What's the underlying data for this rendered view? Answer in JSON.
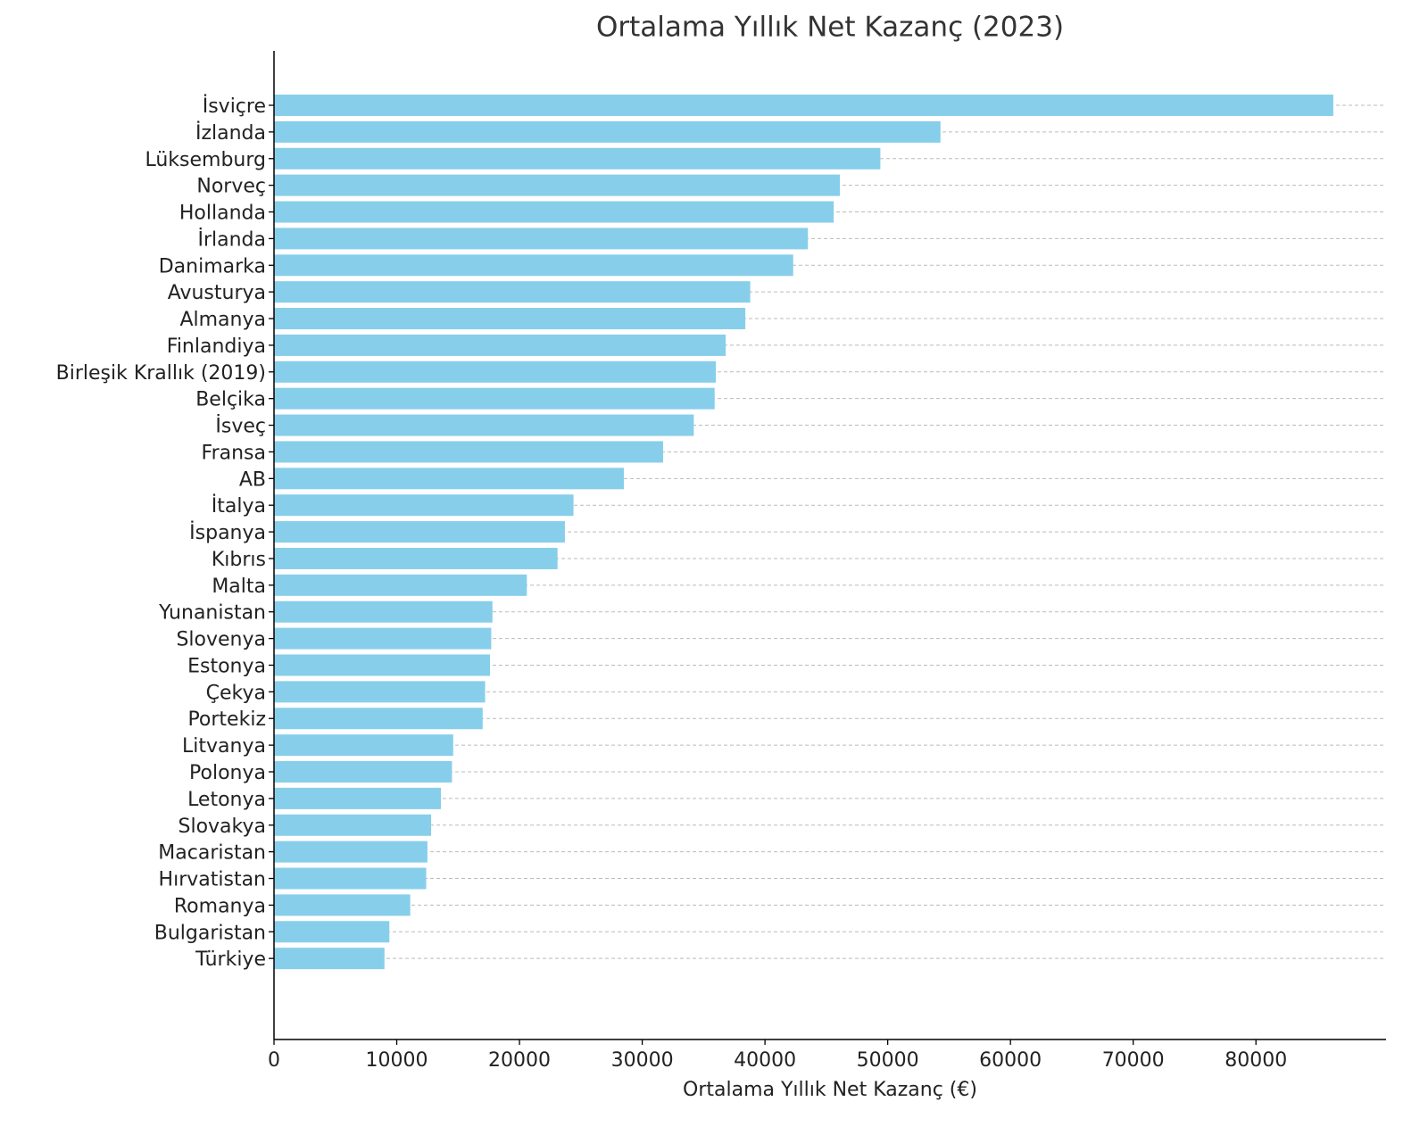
{
  "chart_data": {
    "type": "barh",
    "title": "Ortalama Yıllık Net Kazanç (2023)",
    "xlabel": "Ortalama Yıllık Net Kazanç (€)",
    "categories": [
      "İsviçre",
      "İzlanda",
      "Lüksemburg",
      "Norveç",
      "Hollanda",
      "İrlanda",
      "Danimarka",
      "Avusturya",
      "Almanya",
      "Finlandiya",
      "Birleşik Krallık (2019)",
      "Belçika",
      "İsveç",
      "Fransa",
      "AB",
      "İtalya",
      "İspanya",
      "Kıbrıs",
      "Malta",
      "Yunanistan",
      "Slovenya",
      "Estonya",
      "Çekya",
      "Portekiz",
      "Litvanya",
      "Polonya",
      "Letonya",
      "Slovakya",
      "Macaristan",
      "Hırvatistan",
      "Romanya",
      "Bulgaristan",
      "Türkiye"
    ],
    "values": [
      86300,
      54300,
      49400,
      46100,
      45600,
      43500,
      42300,
      38800,
      38400,
      36800,
      36000,
      35900,
      34200,
      31700,
      28500,
      24400,
      23700,
      23100,
      20600,
      17800,
      17700,
      17600,
      17200,
      17000,
      14600,
      14500,
      13600,
      12800,
      12500,
      12400,
      11100,
      9400,
      9000
    ],
    "color": "#87ceeb",
    "xlim": [
      0,
      90600
    ],
    "xticks": [
      0,
      10000,
      20000,
      30000,
      40000,
      50000,
      60000,
      70000,
      80000
    ],
    "grid": true
  }
}
